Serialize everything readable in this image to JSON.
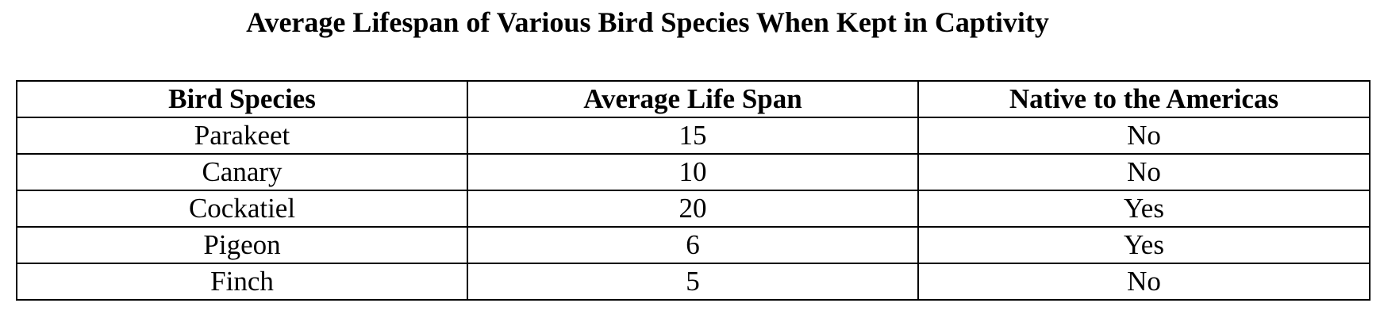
{
  "document": {
    "title": "Average Lifespan of Various Bird Species When Kept in Captivity"
  },
  "table": {
    "headers": [
      "Bird Species",
      "Average Life Span",
      "Native to the Americas"
    ],
    "rows": [
      [
        "Parakeet",
        "15",
        "No"
      ],
      [
        "Canary",
        "10",
        "No"
      ],
      [
        "Cockatiel",
        "20",
        "Yes"
      ],
      [
        "Pigeon",
        "6",
        "Yes"
      ],
      [
        "Finch",
        "5",
        "No"
      ]
    ]
  }
}
